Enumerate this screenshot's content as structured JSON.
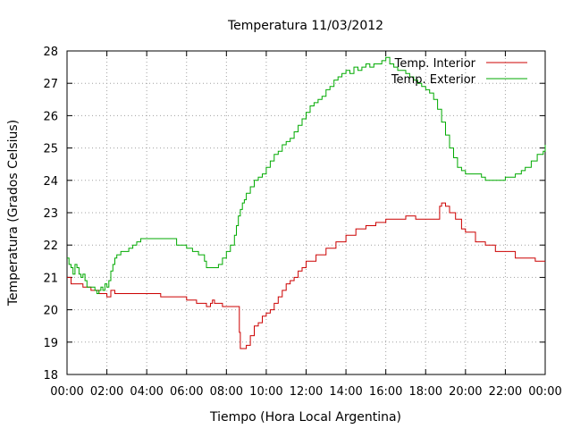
{
  "chart_data": {
    "type": "line",
    "title": "Temperatura 11/03/2012",
    "xlabel": "Tiempo (Hora Local Argentina)",
    "ylabel": "Temperatura (Grados Celsius)",
    "xlim": [
      0,
      24
    ],
    "ylim": [
      18,
      28
    ],
    "x_ticks": [
      0,
      2,
      4,
      6,
      8,
      10,
      12,
      14,
      16,
      18,
      20,
      22,
      24
    ],
    "x_tick_labels": [
      "00:00",
      "02:00",
      "04:00",
      "06:00",
      "08:00",
      "10:00",
      "12:00",
      "14:00",
      "16:00",
      "18:00",
      "20:00",
      "22:00",
      "00:00"
    ],
    "y_ticks": [
      18,
      19,
      20,
      21,
      22,
      23,
      24,
      25,
      26,
      27,
      28
    ],
    "grid": true,
    "legend_position": "top-right",
    "series": [
      {
        "name": "Temp. Interior",
        "color": "#cc0000",
        "x": [
          0,
          0.2,
          0.4,
          0.8,
          1.0,
          1.2,
          1.4,
          1.6,
          1.8,
          2.0,
          2.2,
          2.4,
          2.6,
          2.8,
          3.0,
          3.5,
          4.0,
          4.5,
          4.7,
          4.8,
          5.0,
          5.5,
          5.9,
          6.0,
          6.5,
          6.9,
          7.0,
          7.2,
          7.3,
          7.4,
          7.6,
          7.8,
          8.0,
          8.6,
          8.65,
          8.7,
          8.9,
          9.0,
          9.2,
          9.4,
          9.6,
          9.8,
          10.0,
          10.2,
          10.4,
          10.6,
          10.8,
          11.0,
          11.2,
          11.4,
          11.6,
          11.8,
          12.0,
          12.5,
          13.0,
          13.5,
          14.0,
          14.5,
          15.0,
          15.5,
          16.0,
          16.5,
          17.0,
          17.5,
          18.0,
          18.4,
          18.6,
          18.7,
          18.8,
          19.0,
          19.2,
          19.5,
          19.8,
          20.0,
          20.5,
          21.0,
          21.5,
          22.0,
          22.5,
          23.0,
          23.5,
          24.0
        ],
        "values": [
          21.0,
          20.8,
          20.8,
          20.7,
          20.7,
          20.6,
          20.6,
          20.5,
          20.5,
          20.4,
          20.6,
          20.5,
          20.5,
          20.5,
          20.5,
          20.5,
          20.5,
          20.5,
          20.4,
          20.4,
          20.4,
          20.4,
          20.4,
          20.3,
          20.2,
          20.2,
          20.1,
          20.2,
          20.3,
          20.2,
          20.2,
          20.1,
          20.1,
          20.1,
          19.3,
          18.8,
          18.8,
          18.9,
          19.2,
          19.5,
          19.6,
          19.8,
          19.9,
          20.0,
          20.2,
          20.4,
          20.6,
          20.8,
          20.9,
          21.0,
          21.2,
          21.3,
          21.5,
          21.7,
          21.9,
          22.1,
          22.3,
          22.5,
          22.6,
          22.7,
          22.8,
          22.8,
          22.9,
          22.8,
          22.8,
          22.8,
          22.8,
          23.2,
          23.3,
          23.2,
          23.0,
          22.8,
          22.5,
          22.4,
          22.1,
          22.0,
          21.8,
          21.8,
          21.6,
          21.6,
          21.5,
          21.5
        ]
      },
      {
        "name": "Temp. Exterior",
        "color": "#00aa00",
        "x": [
          0,
          0.1,
          0.2,
          0.3,
          0.4,
          0.5,
          0.6,
          0.7,
          0.8,
          0.9,
          1.0,
          1.2,
          1.4,
          1.5,
          1.6,
          1.7,
          1.8,
          1.9,
          2.0,
          2.1,
          2.2,
          2.3,
          2.4,
          2.5,
          2.7,
          2.9,
          3.1,
          3.3,
          3.5,
          3.7,
          3.9,
          4.1,
          4.5,
          5.0,
          5.5,
          6.0,
          6.3,
          6.6,
          6.9,
          7.0,
          7.2,
          7.4,
          7.6,
          7.8,
          8.0,
          8.2,
          8.4,
          8.5,
          8.6,
          8.7,
          8.8,
          8.9,
          9.0,
          9.2,
          9.4,
          9.6,
          9.8,
          10.0,
          10.2,
          10.4,
          10.6,
          10.8,
          11.0,
          11.2,
          11.4,
          11.6,
          11.8,
          12.0,
          12.2,
          12.4,
          12.6,
          12.8,
          13.0,
          13.2,
          13.4,
          13.6,
          13.8,
          14.0,
          14.2,
          14.4,
          14.6,
          14.8,
          15.0,
          15.2,
          15.4,
          15.6,
          15.8,
          16.0,
          16.2,
          16.4,
          16.6,
          16.8,
          17.0,
          17.2,
          17.4,
          17.6,
          17.8,
          18.0,
          18.2,
          18.4,
          18.6,
          18.8,
          19.0,
          19.2,
          19.4,
          19.6,
          19.8,
          20.0,
          20.2,
          20.5,
          20.8,
          21.0,
          21.3,
          21.6,
          22.0,
          22.2,
          22.5,
          22.8,
          23.0,
          23.3,
          23.6,
          23.9,
          24.0
        ],
        "values": [
          21.6,
          21.4,
          21.3,
          21.1,
          21.4,
          21.3,
          21.1,
          21.0,
          21.1,
          20.9,
          20.7,
          20.7,
          20.6,
          20.5,
          20.6,
          20.7,
          20.6,
          20.8,
          20.7,
          20.9,
          21.2,
          21.4,
          21.6,
          21.7,
          21.8,
          21.8,
          21.9,
          22.0,
          22.1,
          22.2,
          22.2,
          22.2,
          22.2,
          22.2,
          22.0,
          21.9,
          21.8,
          21.7,
          21.5,
          21.3,
          21.3,
          21.3,
          21.4,
          21.6,
          21.8,
          22.0,
          22.3,
          22.6,
          22.9,
          23.1,
          23.3,
          23.4,
          23.6,
          23.8,
          24.0,
          24.1,
          24.2,
          24.4,
          24.6,
          24.8,
          24.9,
          25.1,
          25.2,
          25.3,
          25.5,
          25.7,
          25.9,
          26.1,
          26.3,
          26.4,
          26.5,
          26.6,
          26.8,
          26.9,
          27.1,
          27.2,
          27.3,
          27.4,
          27.3,
          27.5,
          27.4,
          27.5,
          27.6,
          27.5,
          27.6,
          27.6,
          27.7,
          27.8,
          27.6,
          27.5,
          27.4,
          27.4,
          27.3,
          27.2,
          27.1,
          27.0,
          26.9,
          26.8,
          26.7,
          26.5,
          26.2,
          25.8,
          25.4,
          25.0,
          24.7,
          24.4,
          24.3,
          24.2,
          24.2,
          24.2,
          24.1,
          24.0,
          24.0,
          24.0,
          24.1,
          24.1,
          24.2,
          24.3,
          24.4,
          24.6,
          24.8,
          24.9,
          25.1
        ]
      }
    ]
  }
}
